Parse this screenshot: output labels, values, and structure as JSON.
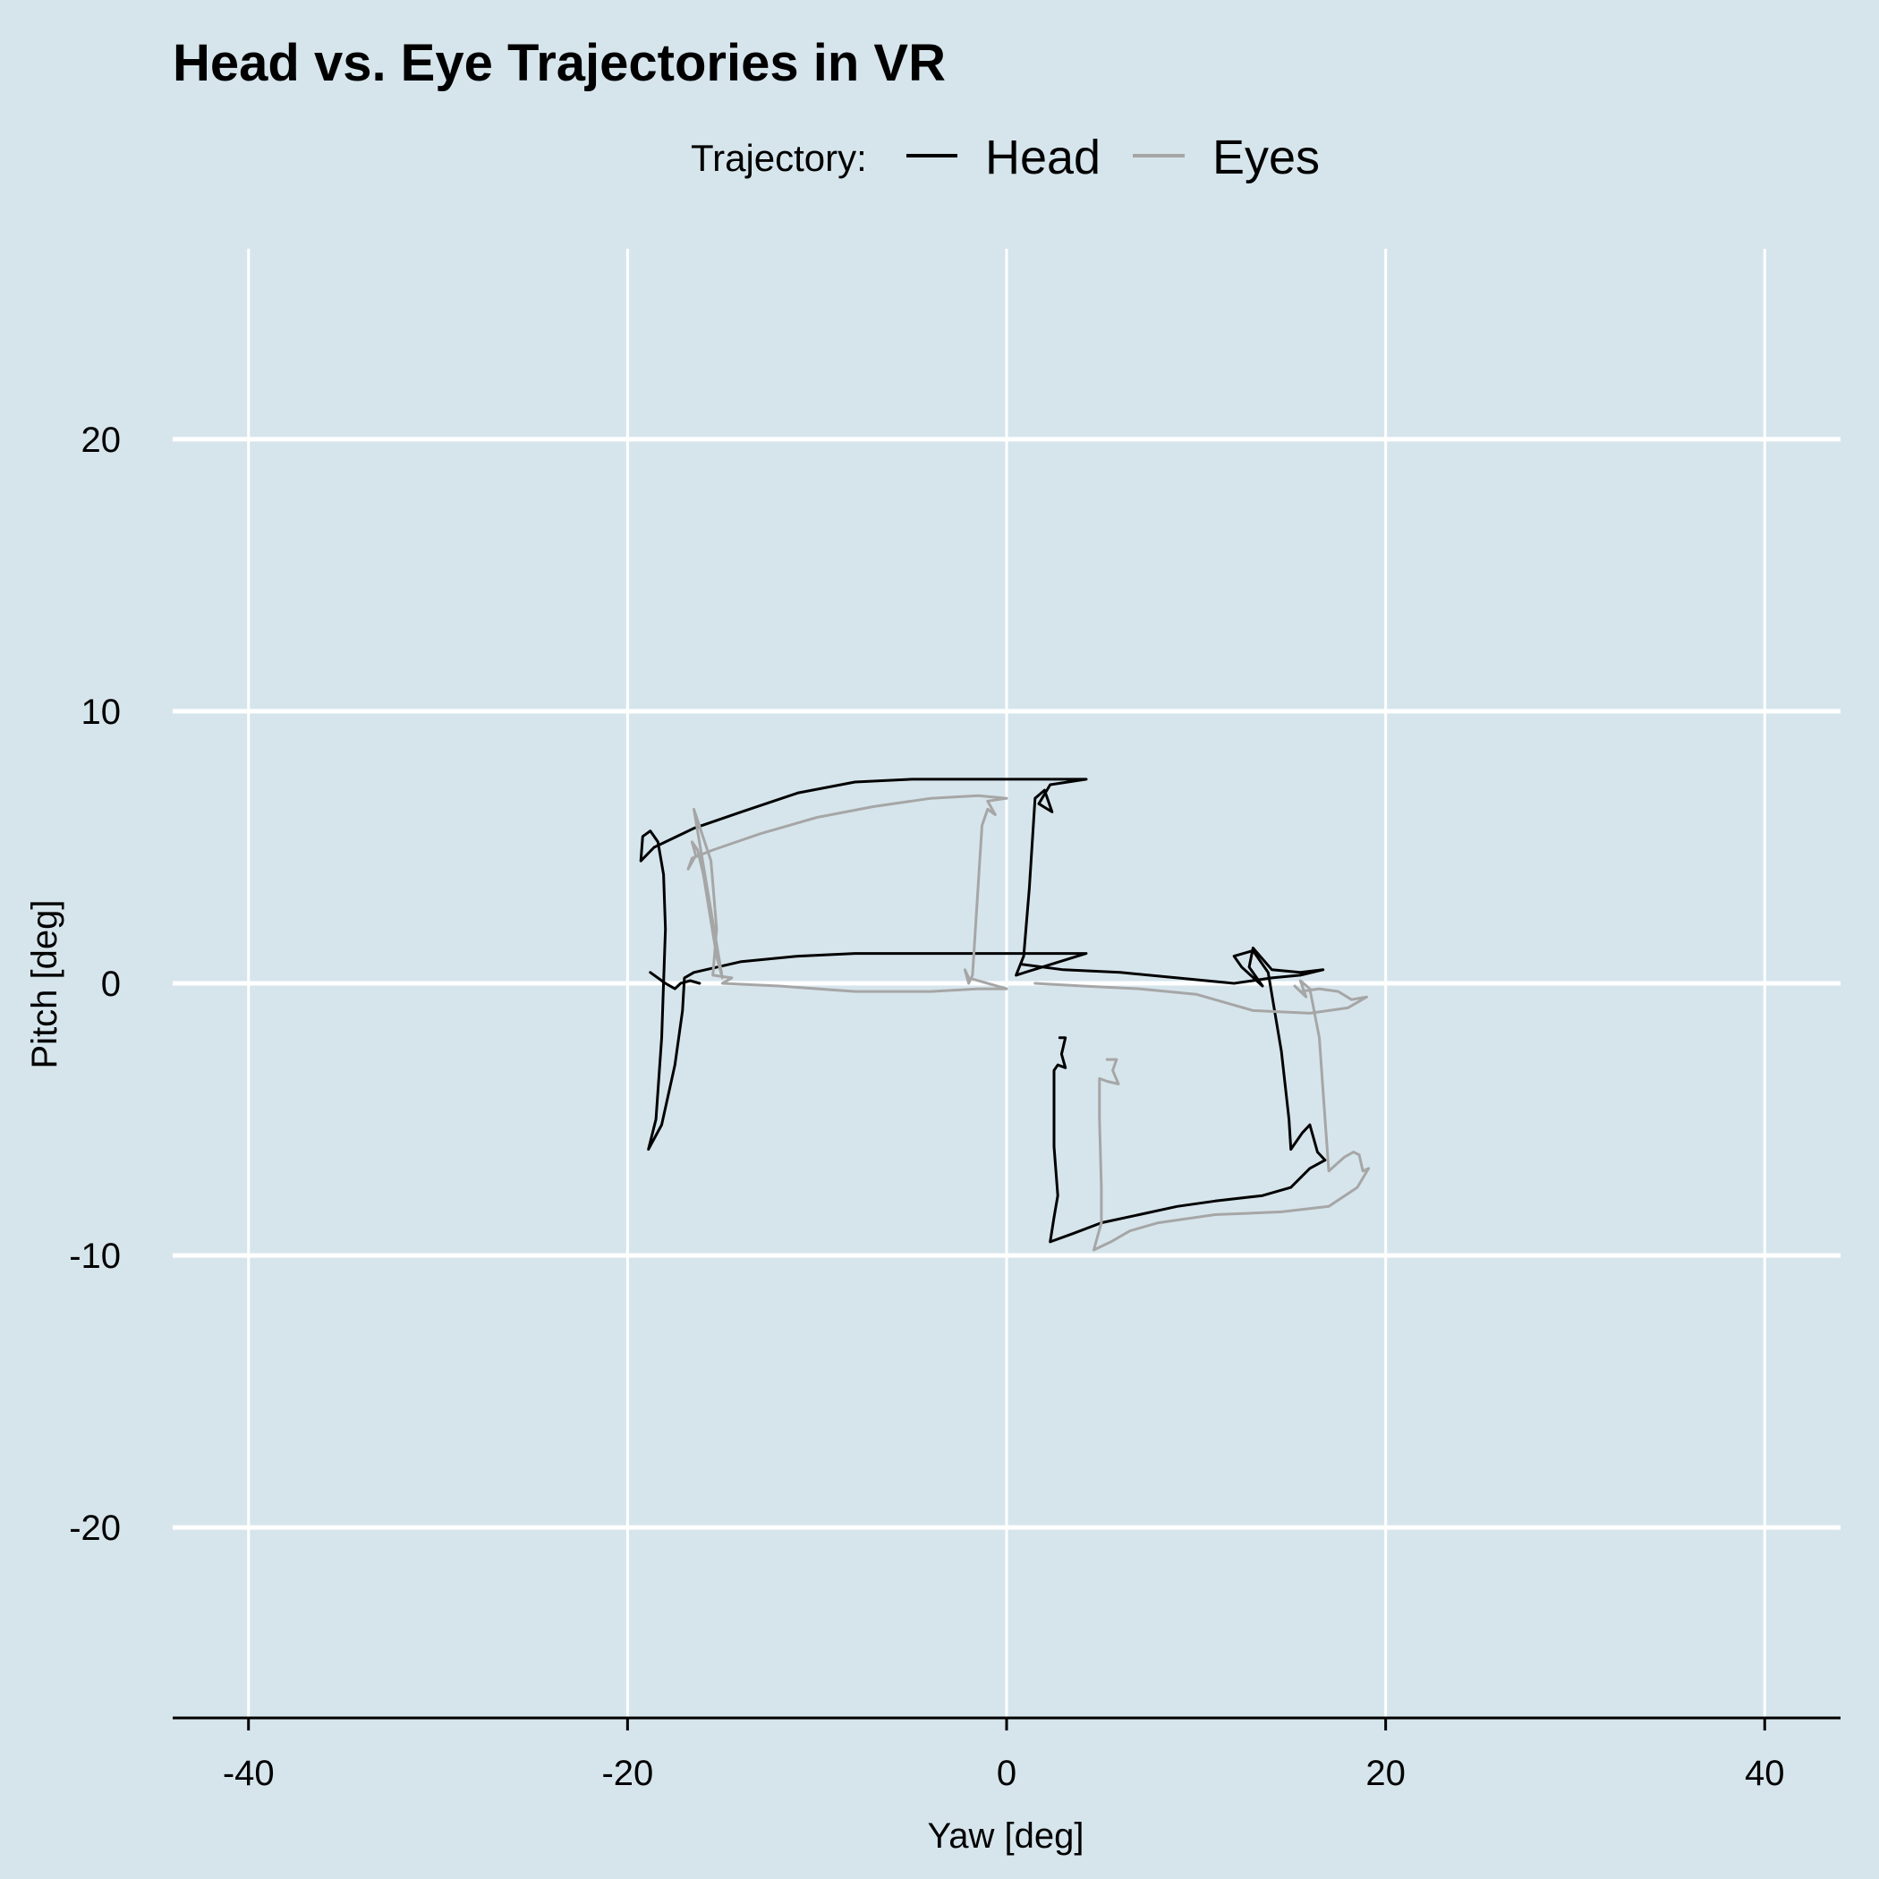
{
  "chart_data": {
    "type": "line",
    "title": "Head vs. Eye Trajectories in VR",
    "xlabel": "Yaw [deg]",
    "ylabel": "Pitch [deg]",
    "xlim": [
      -44,
      44
    ],
    "ylim": [
      -27,
      27
    ],
    "x_ticks": [
      -40,
      -20,
      0,
      20,
      40
    ],
    "x_tick_labels": [
      "-40",
      "-20",
      "0",
      "20",
      "40"
    ],
    "y_ticks": [
      -20,
      -10,
      0,
      10,
      20
    ],
    "y_tick_labels": [
      "-20",
      "-10",
      "0",
      "10",
      "20"
    ],
    "grid": true,
    "legend": {
      "title": "Trajectory:",
      "position": "top"
    },
    "series": [
      {
        "name": "Head",
        "color": "#000000",
        "points": [
          [
            4.2,
            7.5
          ],
          [
            2.5,
            7.5
          ],
          [
            -5.0,
            7.5
          ],
          [
            -8.0,
            7.4
          ],
          [
            -11.0,
            7.0
          ],
          [
            -14.0,
            6.3
          ],
          [
            -16.5,
            5.7
          ],
          [
            -18.6,
            5.0
          ],
          [
            -19.3,
            4.5
          ],
          [
            -19.2,
            5.4
          ],
          [
            -18.8,
            5.6
          ],
          [
            -18.4,
            5.2
          ],
          [
            -18.1,
            4.0
          ],
          [
            -18.0,
            2.0
          ],
          [
            -18.2,
            -2.0
          ],
          [
            -18.5,
            -5.0
          ],
          [
            -18.9,
            -6.1
          ],
          [
            -18.2,
            -5.2
          ],
          [
            -17.5,
            -3.0
          ],
          [
            -17.1,
            -1.0
          ],
          [
            -17.0,
            0.2
          ],
          [
            -16.5,
            0.4
          ],
          [
            -14.0,
            0.8
          ],
          [
            -11.0,
            1.0
          ],
          [
            -8.0,
            1.1
          ],
          [
            -4.0,
            1.1
          ],
          [
            4.2,
            1.1
          ],
          [
            0.5,
            0.3
          ],
          [
            0.9,
            1.0
          ],
          [
            1.2,
            3.5
          ],
          [
            1.5,
            6.8
          ],
          [
            2.0,
            7.1
          ],
          [
            2.4,
            6.3
          ],
          [
            1.7,
            6.6
          ],
          [
            2.3,
            7.3
          ],
          [
            4.2,
            7.5
          ]
        ]
      },
      {
        "name": "Head",
        "color": "#000000",
        "points": [
          [
            -18.8,
            0.4
          ],
          [
            -18.0,
            0.0
          ],
          [
            -17.5,
            -0.2
          ],
          [
            -17.2,
            0.0
          ],
          [
            -16.7,
            0.1
          ],
          [
            -16.2,
            0.0
          ]
        ]
      },
      {
        "name": "Head",
        "color": "#000000",
        "points": [
          [
            0.8,
            0.7
          ],
          [
            3.0,
            0.5
          ],
          [
            6.0,
            0.4
          ],
          [
            9.0,
            0.2
          ],
          [
            12.0,
            0.0
          ],
          [
            14.0,
            0.2
          ],
          [
            15.5,
            0.3
          ],
          [
            16.7,
            0.5
          ],
          [
            15.5,
            0.4
          ],
          [
            14.0,
            0.5
          ],
          [
            13.0,
            1.3
          ],
          [
            12.8,
            0.6
          ],
          [
            13.5,
            -0.1
          ],
          [
            12.4,
            0.6
          ],
          [
            12.0,
            1.0
          ],
          [
            13.0,
            1.2
          ],
          [
            13.8,
            0.4
          ],
          [
            14.5,
            -2.5
          ],
          [
            14.9,
            -5.0
          ],
          [
            15.0,
            -6.1
          ],
          [
            15.6,
            -5.5
          ],
          [
            16.0,
            -5.2
          ],
          [
            16.4,
            -6.2
          ],
          [
            16.8,
            -6.5
          ],
          [
            16.0,
            -6.8
          ],
          [
            15.0,
            -7.5
          ],
          [
            13.5,
            -7.8
          ],
          [
            11.0,
            -8.0
          ],
          [
            9.0,
            -8.2
          ],
          [
            7.0,
            -8.5
          ],
          [
            5.0,
            -8.8
          ],
          [
            3.5,
            -9.2
          ],
          [
            2.3,
            -9.5
          ],
          [
            2.5,
            -8.6
          ],
          [
            2.7,
            -7.8
          ],
          [
            2.5,
            -6.0
          ],
          [
            2.5,
            -3.2
          ],
          [
            2.7,
            -3.0
          ],
          [
            3.1,
            -3.1
          ],
          [
            2.9,
            -2.6
          ],
          [
            3.1,
            -2.0
          ],
          [
            2.8,
            -2.0
          ]
        ]
      },
      {
        "name": "Eyes",
        "color": "#a6a6a6",
        "points": [
          [
            0.0,
            6.8
          ],
          [
            -1.5,
            6.9
          ],
          [
            -4.0,
            6.8
          ],
          [
            -7.0,
            6.5
          ],
          [
            -10.0,
            6.1
          ],
          [
            -13.0,
            5.5
          ],
          [
            -15.5,
            4.9
          ],
          [
            -16.6,
            4.6
          ],
          [
            -16.8,
            4.2
          ],
          [
            -16.4,
            4.7
          ],
          [
            -16.6,
            5.2
          ],
          [
            -16.3,
            4.9
          ],
          [
            -16.0,
            4.0
          ],
          [
            -15.3,
            1.0
          ],
          [
            -15.0,
            0.2
          ],
          [
            -16.5,
            6.4
          ],
          [
            -15.6,
            4.5
          ],
          [
            -15.3,
            2.0
          ],
          [
            -15.5,
            0.3
          ],
          [
            -14.5,
            0.2
          ],
          [
            -15.0,
            0.0
          ],
          [
            -12.0,
            -0.1
          ],
          [
            -8.0,
            -0.3
          ],
          [
            -4.0,
            -0.3
          ],
          [
            -1.5,
            -0.2
          ],
          [
            0.0,
            -0.2
          ],
          [
            -2.0,
            0.2
          ],
          [
            -2.2,
            0.5
          ],
          [
            -2.0,
            0.0
          ],
          [
            -1.8,
            0.3
          ],
          [
            -1.6,
            2.5
          ],
          [
            -1.3,
            5.8
          ],
          [
            -1.0,
            6.4
          ],
          [
            -0.6,
            6.2
          ],
          [
            -1.0,
            6.7
          ],
          [
            0.0,
            6.8
          ]
        ]
      },
      {
        "name": "Eyes",
        "color": "#a6a6a6",
        "points": [
          [
            1.5,
            0.0
          ],
          [
            4.0,
            -0.1
          ],
          [
            7.0,
            -0.2
          ],
          [
            10.0,
            -0.4
          ],
          [
            13.0,
            -1.0
          ],
          [
            16.0,
            -1.1
          ],
          [
            18.0,
            -0.9
          ],
          [
            19.0,
            -0.5
          ],
          [
            18.2,
            -0.6
          ],
          [
            17.5,
            -0.3
          ],
          [
            16.5,
            -0.2
          ],
          [
            15.5,
            -0.3
          ],
          [
            15.2,
            -0.1
          ],
          [
            15.8,
            -0.5
          ],
          [
            15.5,
            0.1
          ],
          [
            16.0,
            -0.2
          ],
          [
            16.5,
            -2.0
          ],
          [
            16.8,
            -5.0
          ],
          [
            17.0,
            -6.9
          ],
          [
            17.8,
            -6.4
          ],
          [
            18.3,
            -6.2
          ],
          [
            18.6,
            -6.3
          ],
          [
            18.8,
            -6.9
          ],
          [
            19.1,
            -6.8
          ],
          [
            18.5,
            -7.5
          ],
          [
            17.0,
            -8.2
          ],
          [
            14.5,
            -8.4
          ],
          [
            11.0,
            -8.5
          ],
          [
            8.0,
            -8.8
          ],
          [
            6.5,
            -9.1
          ],
          [
            5.5,
            -9.5
          ],
          [
            4.6,
            -9.8
          ],
          [
            5.0,
            -8.8
          ],
          [
            5.0,
            -7.5
          ],
          [
            4.9,
            -5.0
          ],
          [
            4.9,
            -3.5
          ],
          [
            5.3,
            -3.6
          ],
          [
            5.9,
            -3.7
          ],
          [
            5.6,
            -3.2
          ],
          [
            5.8,
            -2.8
          ],
          [
            5.3,
            -2.8
          ]
        ]
      }
    ]
  },
  "legend_items": [
    {
      "label": "Head",
      "color": "#000000"
    },
    {
      "label": "Eyes",
      "color": "#a6a6a6"
    }
  ],
  "colors": {
    "background": "#d6e5ec",
    "grid": "#ffffff",
    "axis": "#000000"
  }
}
